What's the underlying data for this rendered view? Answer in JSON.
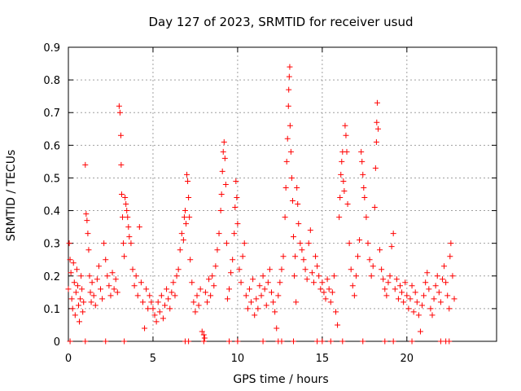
{
  "chart_data": {
    "type": "scatter",
    "title": "Day 127 of 2023, SRMTID for receiver usud",
    "xlabel": "GPS time / hours",
    "ylabel": "SRMTID / TECUs",
    "xlim": [
      0,
      25.3
    ],
    "ylim": [
      0,
      0.9
    ],
    "xticks": [
      "0",
      "5",
      "10",
      "15",
      "20"
    ],
    "xtick_values": [
      0,
      5,
      10,
      15,
      20
    ],
    "yticks": [
      "0",
      "0.1",
      "0.2",
      "0.3",
      "0.4",
      "0.5",
      "0.6",
      "0.7",
      "0.8",
      "0.9"
    ],
    "ytick_values": [
      0,
      0.1,
      0.2,
      0.3,
      0.4,
      0.5,
      0.6,
      0.7,
      0.8,
      0.9
    ],
    "grid": true,
    "marker": "+",
    "color": "#ff0000",
    "series": [
      {
        "name": "SRMTID",
        "points": [
          [
            0.0,
            0.16
          ],
          [
            0.05,
            0.3
          ],
          [
            0.1,
            0.25
          ],
          [
            0.15,
            0.21
          ],
          [
            0.2,
            0.13
          ],
          [
            0.25,
            0.1
          ],
          [
            0.3,
            0.24
          ],
          [
            0.35,
            0.18
          ],
          [
            0.4,
            0.08
          ],
          [
            0.45,
            0.15
          ],
          [
            0.5,
            0.22
          ],
          [
            0.55,
            0.17
          ],
          [
            0.6,
            0.11
          ],
          [
            0.65,
            0.06
          ],
          [
            0.7,
            0.13
          ],
          [
            0.75,
            0.2
          ],
          [
            0.8,
            0.16
          ],
          [
            0.85,
            0.09
          ],
          [
            0.9,
            0.12
          ],
          [
            1.0,
            0.54
          ],
          [
            1.05,
            0.39
          ],
          [
            1.1,
            0.37
          ],
          [
            1.15,
            0.33
          ],
          [
            1.2,
            0.28
          ],
          [
            1.25,
            0.2
          ],
          [
            1.3,
            0.15
          ],
          [
            1.35,
            0.12
          ],
          [
            1.4,
            0.18
          ],
          [
            1.5,
            0.14
          ],
          [
            1.6,
            0.11
          ],
          [
            1.7,
            0.19
          ],
          [
            1.8,
            0.23
          ],
          [
            1.9,
            0.16
          ],
          [
            2.0,
            0.13
          ],
          [
            2.1,
            0.3
          ],
          [
            2.2,
            0.25
          ],
          [
            2.3,
            0.2
          ],
          [
            2.4,
            0.17
          ],
          [
            2.5,
            0.14
          ],
          [
            2.6,
            0.21
          ],
          [
            2.7,
            0.16
          ],
          [
            2.8,
            0.19
          ],
          [
            2.9,
            0.15
          ],
          [
            3.0,
            0.72
          ],
          [
            3.05,
            0.7
          ],
          [
            3.1,
            0.63
          ],
          [
            3.12,
            0.54
          ],
          [
            3.15,
            0.45
          ],
          [
            3.2,
            0.38
          ],
          [
            3.25,
            0.3
          ],
          [
            3.3,
            0.26
          ],
          [
            3.35,
            0.44
          ],
          [
            3.4,
            0.42
          ],
          [
            3.45,
            0.4
          ],
          [
            3.5,
            0.38
          ],
          [
            3.55,
            0.35
          ],
          [
            3.6,
            0.32
          ],
          [
            3.7,
            0.3
          ],
          [
            3.8,
            0.22
          ],
          [
            3.9,
            0.17
          ],
          [
            4.0,
            0.2
          ],
          [
            4.1,
            0.14
          ],
          [
            4.2,
            0.35
          ],
          [
            4.3,
            0.18
          ],
          [
            4.4,
            0.12
          ],
          [
            4.5,
            0.04
          ],
          [
            4.6,
            0.16
          ],
          [
            4.7,
            0.1
          ],
          [
            4.8,
            0.14
          ],
          [
            4.9,
            0.12
          ],
          [
            5.0,
            0.1
          ],
          [
            5.1,
            0.08
          ],
          [
            5.2,
            0.06
          ],
          [
            5.3,
            0.12
          ],
          [
            5.4,
            0.09
          ],
          [
            5.5,
            0.14
          ],
          [
            5.6,
            0.07
          ],
          [
            5.7,
            0.11
          ],
          [
            5.8,
            0.16
          ],
          [
            5.9,
            0.13
          ],
          [
            6.0,
            0.1
          ],
          [
            6.1,
            0.15
          ],
          [
            6.2,
            0.18
          ],
          [
            6.3,
            0.14
          ],
          [
            6.4,
            0.2
          ],
          [
            6.5,
            0.22
          ],
          [
            6.6,
            0.28
          ],
          [
            6.7,
            0.33
          ],
          [
            6.8,
            0.31
          ],
          [
            6.85,
            0.38
          ],
          [
            6.9,
            0.4
          ],
          [
            6.95,
            0.36
          ],
          [
            7.0,
            0.51
          ],
          [
            7.05,
            0.49
          ],
          [
            7.1,
            0.44
          ],
          [
            7.15,
            0.38
          ],
          [
            7.2,
            0.25
          ],
          [
            7.3,
            0.18
          ],
          [
            7.4,
            0.12
          ],
          [
            7.5,
            0.09
          ],
          [
            7.6,
            0.14
          ],
          [
            7.7,
            0.11
          ],
          [
            7.8,
            0.16
          ],
          [
            7.9,
            0.03
          ],
          [
            8.0,
            0.02
          ],
          [
            8.05,
            0.01
          ],
          [
            8.1,
            0.15
          ],
          [
            8.2,
            0.12
          ],
          [
            8.3,
            0.19
          ],
          [
            8.4,
            0.14
          ],
          [
            8.5,
            0.2
          ],
          [
            8.6,
            0.17
          ],
          [
            8.7,
            0.23
          ],
          [
            8.8,
            0.28
          ],
          [
            8.9,
            0.33
          ],
          [
            9.0,
            0.4
          ],
          [
            9.05,
            0.45
          ],
          [
            9.1,
            0.52
          ],
          [
            9.15,
            0.58
          ],
          [
            9.2,
            0.61
          ],
          [
            9.25,
            0.56
          ],
          [
            9.3,
            0.48
          ],
          [
            9.35,
            0.3
          ],
          [
            9.4,
            0.13
          ],
          [
            9.5,
            0.16
          ],
          [
            9.6,
            0.21
          ],
          [
            9.7,
            0.25
          ],
          [
            9.8,
            0.33
          ],
          [
            9.85,
            0.41
          ],
          [
            9.9,
            0.49
          ],
          [
            9.95,
            0.44
          ],
          [
            10.0,
            0.36
          ],
          [
            10.1,
            0.22
          ],
          [
            10.2,
            0.18
          ],
          [
            10.3,
            0.26
          ],
          [
            10.4,
            0.3
          ],
          [
            10.5,
            0.14
          ],
          [
            10.6,
            0.1
          ],
          [
            10.7,
            0.16
          ],
          [
            10.8,
            0.12
          ],
          [
            10.9,
            0.19
          ],
          [
            11.0,
            0.08
          ],
          [
            11.1,
            0.13
          ],
          [
            11.2,
            0.1
          ],
          [
            11.3,
            0.17
          ],
          [
            11.4,
            0.14
          ],
          [
            11.5,
            0.2
          ],
          [
            11.6,
            0.16
          ],
          [
            11.7,
            0.11
          ],
          [
            11.8,
            0.18
          ],
          [
            11.9,
            0.22
          ],
          [
            12.0,
            0.15
          ],
          [
            12.1,
            0.12
          ],
          [
            12.2,
            0.09
          ],
          [
            12.3,
            0.04
          ],
          [
            12.4,
            0.14
          ],
          [
            12.5,
            0.18
          ],
          [
            12.6,
            0.22
          ],
          [
            12.7,
            0.26
          ],
          [
            12.8,
            0.38
          ],
          [
            12.85,
            0.47
          ],
          [
            12.9,
            0.55
          ],
          [
            12.95,
            0.62
          ],
          [
            13.0,
            0.72
          ],
          [
            13.02,
            0.77
          ],
          [
            13.05,
            0.81
          ],
          [
            13.08,
            0.84
          ],
          [
            13.1,
            0.66
          ],
          [
            13.15,
            0.58
          ],
          [
            13.2,
            0.5
          ],
          [
            13.25,
            0.43
          ],
          [
            13.3,
            0.32
          ],
          [
            13.35,
            0.2
          ],
          [
            13.4,
            0.26
          ],
          [
            13.45,
            0.12
          ],
          [
            13.5,
            0.47
          ],
          [
            13.55,
            0.42
          ],
          [
            13.6,
            0.36
          ],
          [
            13.7,
            0.3
          ],
          [
            13.8,
            0.28
          ],
          [
            13.9,
            0.25
          ],
          [
            14.0,
            0.22
          ],
          [
            14.1,
            0.19
          ],
          [
            14.2,
            0.3
          ],
          [
            14.3,
            0.34
          ],
          [
            14.4,
            0.21
          ],
          [
            14.5,
            0.18
          ],
          [
            14.6,
            0.26
          ],
          [
            14.7,
            0.23
          ],
          [
            14.8,
            0.2
          ],
          [
            14.9,
            0.16
          ],
          [
            15.0,
            0.18
          ],
          [
            15.1,
            0.15
          ],
          [
            15.2,
            0.13
          ],
          [
            15.3,
            0.19
          ],
          [
            15.4,
            0.16
          ],
          [
            15.5,
            0.12
          ],
          [
            15.6,
            0.15
          ],
          [
            15.7,
            0.2
          ],
          [
            15.8,
            0.09
          ],
          [
            15.9,
            0.05
          ],
          [
            16.0,
            0.38
          ],
          [
            16.05,
            0.44
          ],
          [
            16.1,
            0.51
          ],
          [
            16.15,
            0.55
          ],
          [
            16.2,
            0.58
          ],
          [
            16.25,
            0.49
          ],
          [
            16.3,
            0.46
          ],
          [
            16.35,
            0.66
          ],
          [
            16.4,
            0.63
          ],
          [
            16.45,
            0.58
          ],
          [
            16.5,
            0.42
          ],
          [
            16.6,
            0.3
          ],
          [
            16.7,
            0.22
          ],
          [
            16.8,
            0.17
          ],
          [
            16.9,
            0.14
          ],
          [
            17.0,
            0.2
          ],
          [
            17.1,
            0.26
          ],
          [
            17.2,
            0.31
          ],
          [
            17.3,
            0.58
          ],
          [
            17.35,
            0.55
          ],
          [
            17.4,
            0.51
          ],
          [
            17.45,
            0.47
          ],
          [
            17.5,
            0.44
          ],
          [
            17.6,
            0.38
          ],
          [
            17.7,
            0.3
          ],
          [
            17.8,
            0.25
          ],
          [
            17.9,
            0.2
          ],
          [
            18.0,
            0.23
          ],
          [
            18.1,
            0.41
          ],
          [
            18.15,
            0.53
          ],
          [
            18.2,
            0.61
          ],
          [
            18.22,
            0.67
          ],
          [
            18.25,
            0.73
          ],
          [
            18.3,
            0.65
          ],
          [
            18.4,
            0.28
          ],
          [
            18.5,
            0.22
          ],
          [
            18.6,
            0.19
          ],
          [
            18.7,
            0.16
          ],
          [
            18.8,
            0.14
          ],
          [
            18.9,
            0.18
          ],
          [
            19.0,
            0.2
          ],
          [
            19.1,
            0.29
          ],
          [
            19.2,
            0.33
          ],
          [
            19.3,
            0.16
          ],
          [
            19.4,
            0.19
          ],
          [
            19.5,
            0.13
          ],
          [
            19.6,
            0.17
          ],
          [
            19.7,
            0.15
          ],
          [
            19.8,
            0.12
          ],
          [
            19.9,
            0.18
          ],
          [
            20.0,
            0.14
          ],
          [
            20.1,
            0.1
          ],
          [
            20.2,
            0.13
          ],
          [
            20.3,
            0.17
          ],
          [
            20.4,
            0.09
          ],
          [
            20.5,
            0.15
          ],
          [
            20.6,
            0.12
          ],
          [
            20.7,
            0.08
          ],
          [
            20.8,
            0.03
          ],
          [
            20.9,
            0.11
          ],
          [
            21.0,
            0.14
          ],
          [
            21.1,
            0.18
          ],
          [
            21.2,
            0.21
          ],
          [
            21.3,
            0.16
          ],
          [
            21.4,
            0.1
          ],
          [
            21.5,
            0.08
          ],
          [
            21.6,
            0.13
          ],
          [
            21.7,
            0.17
          ],
          [
            21.8,
            0.2
          ],
          [
            21.9,
            0.15
          ],
          [
            22.0,
            0.12
          ],
          [
            22.1,
            0.19
          ],
          [
            22.2,
            0.23
          ],
          [
            22.3,
            0.18
          ],
          [
            22.4,
            0.14
          ],
          [
            22.5,
            0.1
          ],
          [
            22.55,
            0.26
          ],
          [
            22.6,
            0.3
          ],
          [
            22.7,
            0.2
          ],
          [
            22.8,
            0.13
          ],
          [
            0.1,
            0.0
          ],
          [
            1.0,
            0.0
          ],
          [
            2.2,
            0.0
          ],
          [
            3.3,
            0.0
          ],
          [
            6.9,
            0.0
          ],
          [
            7.1,
            0.0
          ],
          [
            8.0,
            0.0
          ],
          [
            9.5,
            0.0
          ],
          [
            10.0,
            0.0
          ],
          [
            11.5,
            0.0
          ],
          [
            12.4,
            0.0
          ],
          [
            12.6,
            0.0
          ],
          [
            13.3,
            0.0
          ],
          [
            14.7,
            0.0
          ],
          [
            15.0,
            0.0
          ],
          [
            15.5,
            0.0
          ],
          [
            16.2,
            0.0
          ],
          [
            17.4,
            0.0
          ],
          [
            18.7,
            0.0
          ],
          [
            19.2,
            0.0
          ],
          [
            20.3,
            0.0
          ],
          [
            22.0,
            0.0
          ],
          [
            22.3,
            0.0
          ],
          [
            22.5,
            0.0
          ]
        ]
      }
    ]
  }
}
